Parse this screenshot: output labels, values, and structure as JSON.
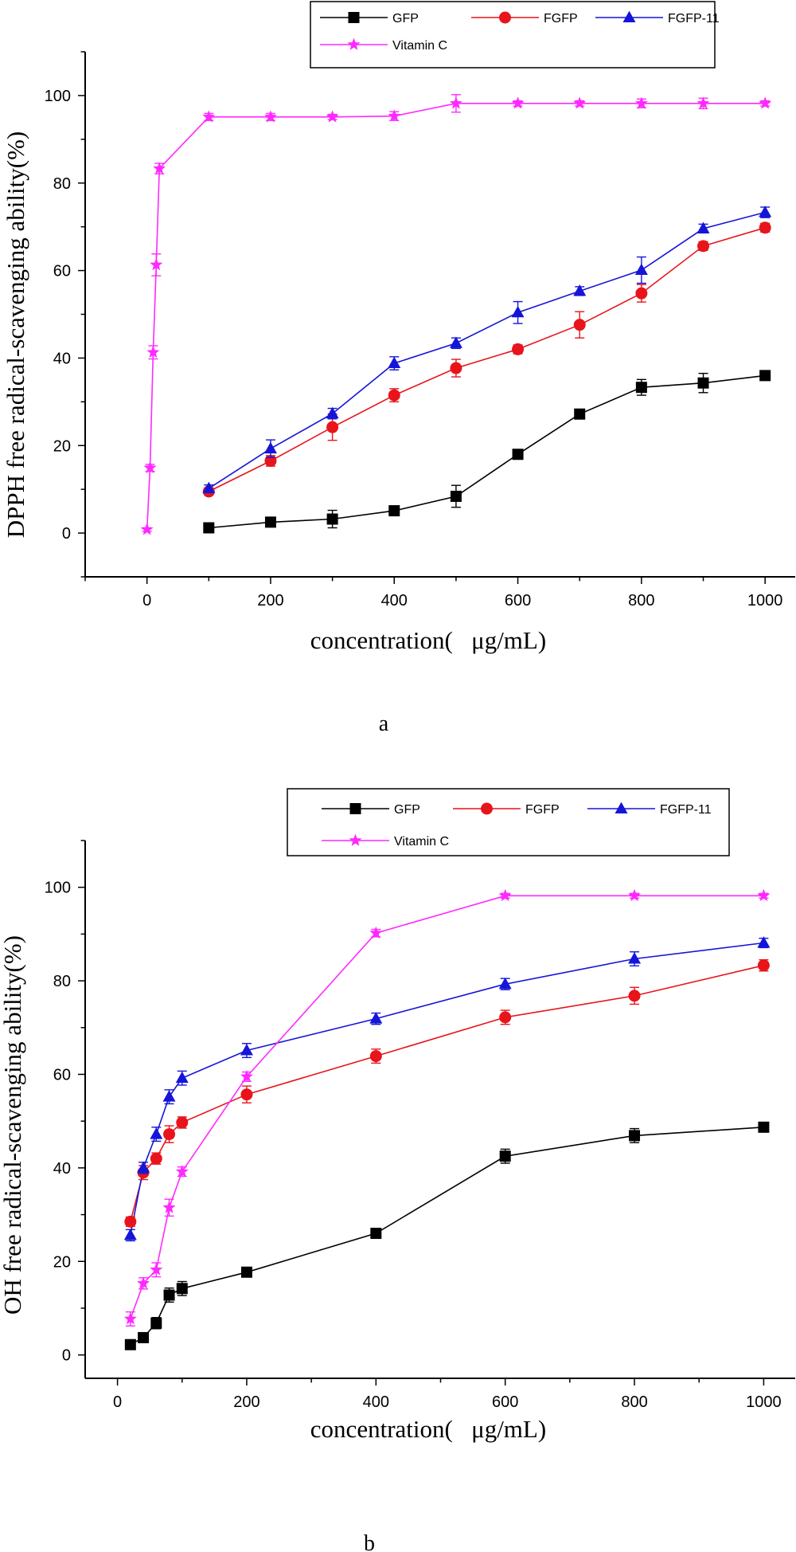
{
  "chart_data": [
    {
      "type": "line",
      "panel_label": "a",
      "xlabel": "concentration(   μg/mL)",
      "ylabel": "DPPH free radical-scavenging ability(%)",
      "xlim": [
        -100,
        1050
      ],
      "ylim": [
        -10,
        110
      ],
      "xticks": [
        0,
        200,
        400,
        600,
        800,
        1000
      ],
      "yticks": [
        0,
        20,
        40,
        60,
        80,
        100
      ],
      "grid": false,
      "legend_position": "top",
      "series": [
        {
          "name": "GFP",
          "color": "#000000",
          "marker": "square",
          "x": [
            100,
            200,
            300,
            400,
            500,
            600,
            700,
            800,
            900,
            1000
          ],
          "y": [
            1.2,
            2.5,
            3.2,
            5.1,
            8.4,
            18.0,
            27.2,
            33.3,
            34.3,
            36.0
          ],
          "err": [
            0.5,
            0.5,
            2.0,
            0.5,
            2.5,
            0.8,
            0.8,
            1.8,
            2.2,
            0.8
          ]
        },
        {
          "name": "FGFP",
          "color": "#e8141b",
          "marker": "circle",
          "x": [
            100,
            200,
            300,
            400,
            500,
            600,
            700,
            800,
            900,
            1000
          ],
          "y": [
            9.5,
            16.5,
            24.2,
            31.5,
            37.7,
            42.0,
            47.6,
            54.8,
            65.6,
            69.8
          ],
          "err": [
            0.8,
            1.2,
            3.0,
            1.5,
            2.0,
            1.0,
            3.0,
            2.0,
            1.0,
            1.0
          ]
        },
        {
          "name": "FGFP-11",
          "color": "#1515d9",
          "marker": "triangle",
          "x": [
            100,
            200,
            300,
            400,
            500,
            600,
            700,
            800,
            900,
            1000
          ],
          "y": [
            10.2,
            19.3,
            27.3,
            38.8,
            43.4,
            50.4,
            55.3,
            60.1,
            69.6,
            73.3
          ],
          "err": [
            0.8,
            2.0,
            1.2,
            1.5,
            1.2,
            2.5,
            1.0,
            3.0,
            1.0,
            1.2
          ]
        },
        {
          "name": "Vitamin C",
          "color": "#ff29ff",
          "marker": "star",
          "x": [
            0,
            5,
            10,
            15,
            20,
            100,
            200,
            300,
            400,
            500,
            600,
            700,
            800,
            900,
            1000
          ],
          "y": [
            0.8,
            14.9,
            41.3,
            61.3,
            83.3,
            95.1,
            95.1,
            95.1,
            95.3,
            98.2,
            98.2,
            98.2,
            98.2,
            98.2,
            98.2
          ],
          "err": [
            0.4,
            0.8,
            1.5,
            2.5,
            1.2,
            0.8,
            0.8,
            0.6,
            1.0,
            2.0,
            0.6,
            0.6,
            1.0,
            1.2,
            0.6
          ]
        }
      ]
    },
    {
      "type": "line",
      "panel_label": "b",
      "xlabel": "concentration(   μg/mL)",
      "ylabel": "OH free radical-scavenging ability(%)",
      "xlim": [
        -50,
        1050
      ],
      "ylim": [
        -5,
        110
      ],
      "xticks": [
        0,
        200,
        400,
        600,
        800,
        1000
      ],
      "yticks": [
        0,
        20,
        40,
        60,
        80,
        100
      ],
      "grid": false,
      "legend_position": "top",
      "series": [
        {
          "name": "GFP",
          "color": "#000000",
          "marker": "square",
          "x": [
            20,
            40,
            60,
            80,
            100,
            200,
            400,
            600,
            800,
            1000
          ],
          "y": [
            2.2,
            3.7,
            6.8,
            12.8,
            14.2,
            17.7,
            26.0,
            42.5,
            46.9,
            48.7
          ],
          "err": [
            0.5,
            0.8,
            1.2,
            1.5,
            1.5,
            0.8,
            0.8,
            1.5,
            1.5,
            1.0
          ]
        },
        {
          "name": "FGFP",
          "color": "#e8141b",
          "marker": "circle",
          "x": [
            20,
            40,
            60,
            80,
            100,
            200,
            400,
            600,
            800,
            1000
          ],
          "y": [
            28.5,
            39.0,
            42.0,
            47.2,
            49.7,
            55.7,
            63.9,
            72.2,
            76.8,
            83.3
          ],
          "err": [
            1.0,
            1.5,
            1.2,
            1.8,
            1.2,
            1.8,
            1.5,
            1.5,
            1.8,
            1.2
          ]
        },
        {
          "name": "FGFP-11",
          "color": "#1515d9",
          "marker": "triangle",
          "x": [
            20,
            40,
            60,
            80,
            100,
            200,
            400,
            600,
            800,
            1000
          ],
          "y": [
            25.6,
            40.0,
            47.2,
            55.2,
            59.2,
            65.1,
            71.9,
            79.3,
            84.7,
            88.1
          ],
          "err": [
            1.2,
            1.2,
            1.5,
            1.5,
            1.5,
            1.5,
            1.2,
            1.2,
            1.5,
            1.0
          ]
        },
        {
          "name": "Vitamin C",
          "color": "#ff29ff",
          "marker": "star",
          "x": [
            20,
            40,
            60,
            80,
            100,
            200,
            400,
            600,
            800,
            1000
          ],
          "y": [
            7.7,
            15.3,
            18.2,
            31.5,
            39.2,
            59.5,
            90.2,
            98.2,
            98.2,
            98.2
          ],
          "err": [
            1.5,
            1.2,
            1.5,
            1.8,
            1.0,
            1.0,
            0.8,
            0.5,
            0.5,
            0.5
          ]
        }
      ]
    }
  ]
}
